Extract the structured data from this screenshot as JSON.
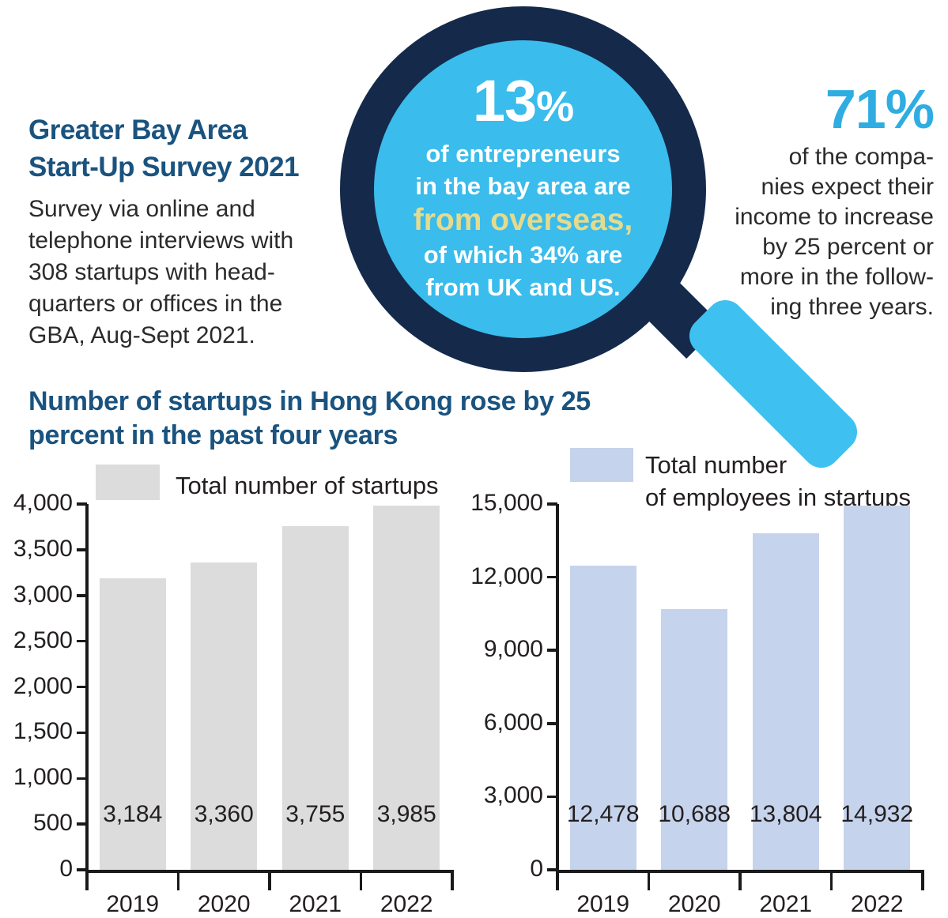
{
  "intro": {
    "title_lines": [
      "Greater Bay Area",
      "Start-Up Survey 2021"
    ],
    "body_lines": [
      "Survey via online and",
      "telephone interviews with",
      "308 startups with head-",
      "quarters or offices in the",
      "GBA, Aug-Sept 2021."
    ]
  },
  "lens": {
    "stat_value": "13",
    "stat_unit": "%",
    "lines_before": [
      "of entrepreneurs",
      "in the bay area are"
    ],
    "highlight": "from overseas,",
    "lines_after": [
      "of which 34% are",
      "from UK and US."
    ]
  },
  "right_stat": {
    "value": "71",
    "unit": "%",
    "lines": [
      "of the compa-",
      "nies expect their",
      "income to increase",
      "by 25 percent or",
      "more in the follow-",
      "ing three years."
    ]
  },
  "section_title_lines": [
    "Number of startups in Hong Kong rose by 25",
    "percent in the past four years"
  ],
  "colors": {
    "navy": "#15294b",
    "lens_blue": "#3abcec",
    "handle_blue": "#3ec1f0",
    "highlight_khaki": "#e5db8e",
    "heading_blue": "#1a537f",
    "stat_blue": "#2fade3",
    "axis_black": "#1a1a1a",
    "text_dark": "#231f20"
  },
  "chart_data": [
    {
      "type": "bar",
      "title": "Total number of startups",
      "legend_lines": [
        "Total number of startups"
      ],
      "legend_position": "top",
      "grid": false,
      "categories": [
        "2019",
        "2020",
        "2021",
        "2022"
      ],
      "values": [
        3184,
        3360,
        3755,
        3985
      ],
      "value_labels": [
        "3,184",
        "3,360",
        "3,755",
        "3,985"
      ],
      "ylim": [
        0,
        4000
      ],
      "yticks": [
        0,
        500,
        1000,
        1500,
        2000,
        2500,
        3000,
        3500,
        4000
      ],
      "ytick_labels": [
        "0",
        "500",
        "1,000",
        "1,500",
        "2,000",
        "2,500",
        "3,000",
        "3,500",
        "4,000"
      ],
      "bar_color": "#dcdcdc"
    },
    {
      "type": "bar",
      "title": "Total number of employees in startups",
      "legend_lines": [
        "Total number",
        "of employees in startups"
      ],
      "legend_position": "top",
      "grid": false,
      "categories": [
        "2019",
        "2020",
        "2021",
        "2022"
      ],
      "values": [
        12478,
        10688,
        13804,
        14932
      ],
      "value_labels": [
        "12,478",
        "10,688",
        "13,804",
        "14,932"
      ],
      "ylim": [
        0,
        15000
      ],
      "yticks": [
        0,
        3000,
        6000,
        9000,
        12000,
        15000
      ],
      "ytick_labels": [
        "0",
        "3,000",
        "6,000",
        "9,000",
        "12,000",
        "15,000"
      ],
      "bar_color": "#c6d3ec"
    }
  ]
}
